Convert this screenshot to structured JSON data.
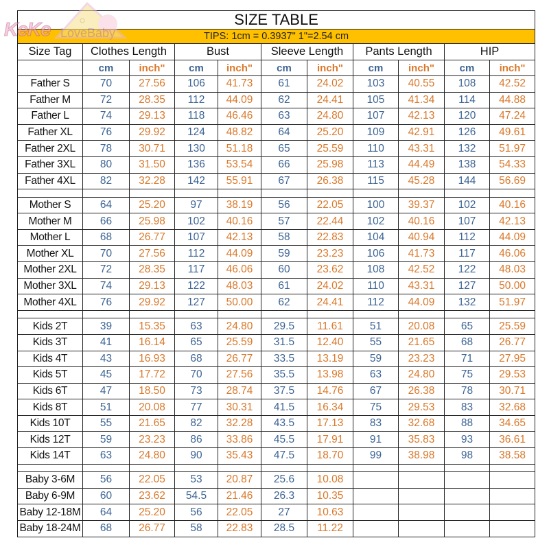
{
  "logo": {
    "part1": "KeKe",
    "part2": "LoveBaby"
  },
  "title": "SIZE TABLE",
  "tips": "TIPS: 1cm = 0.3937\"   1\"=2.54 cm",
  "colors": {
    "cm": "#3d6494",
    "inch": "#d9782a",
    "tips_bg": "#FFC000"
  },
  "headers": [
    "Size Tag",
    "Clothes Length",
    "Bust",
    "Sleeve Length",
    "Pants Length",
    "HIP"
  ],
  "units": {
    "cm": "cm",
    "inch": "inch\""
  },
  "sections": [
    {
      "rows": [
        [
          "Father S",
          "70",
          "27.56",
          "106",
          "41.73",
          "61",
          "24.02",
          "103",
          "40.55",
          "108",
          "42.52"
        ],
        [
          "Father M",
          "72",
          "28.35",
          "112",
          "44.09",
          "62",
          "24.41",
          "105",
          "41.34",
          "114",
          "44.88"
        ],
        [
          "Father L",
          "74",
          "29.13",
          "118",
          "46.46",
          "63",
          "24.80",
          "107",
          "42.13",
          "120",
          "47.24"
        ],
        [
          "Father XL",
          "76",
          "29.92",
          "124",
          "48.82",
          "64",
          "25.20",
          "109",
          "42.91",
          "126",
          "49.61"
        ],
        [
          "Father 2XL",
          "78",
          "30.71",
          "130",
          "51.18",
          "65",
          "25.59",
          "110",
          "43.31",
          "132",
          "51.97"
        ],
        [
          "Father 3XL",
          "80",
          "31.50",
          "136",
          "53.54",
          "66",
          "25.98",
          "113",
          "44.49",
          "138",
          "54.33"
        ],
        [
          "Father 4XL",
          "82",
          "32.28",
          "142",
          "55.91",
          "67",
          "26.38",
          "115",
          "45.28",
          "144",
          "56.69"
        ]
      ]
    },
    {
      "rows": [
        [
          "Mother S",
          "64",
          "25.20",
          "97",
          "38.19",
          "56",
          "22.05",
          "100",
          "39.37",
          "102",
          "40.16"
        ],
        [
          "Mother M",
          "66",
          "25.98",
          "102",
          "40.16",
          "57",
          "22.44",
          "102",
          "40.16",
          "107",
          "42.13"
        ],
        [
          "Mother L",
          "68",
          "26.77",
          "107",
          "42.13",
          "58",
          "22.83",
          "104",
          "40.94",
          "112",
          "44.09"
        ],
        [
          "Mother XL",
          "70",
          "27.56",
          "112",
          "44.09",
          "59",
          "23.23",
          "106",
          "41.73",
          "117",
          "46.06"
        ],
        [
          "Mother 2XL",
          "72",
          "28.35",
          "117",
          "46.06",
          "60",
          "23.62",
          "108",
          "42.52",
          "122",
          "48.03"
        ],
        [
          "Mother 3XL",
          "74",
          "29.13",
          "122",
          "48.03",
          "61",
          "24.02",
          "110",
          "43.31",
          "127",
          "50.00"
        ],
        [
          "Mother 4XL",
          "76",
          "29.92",
          "127",
          "50.00",
          "62",
          "24.41",
          "112",
          "44.09",
          "132",
          "51.97"
        ]
      ]
    },
    {
      "rows": [
        [
          "Kids 2T",
          "39",
          "15.35",
          "63",
          "24.80",
          "29.5",
          "11.61",
          "51",
          "20.08",
          "65",
          "25.59"
        ],
        [
          "Kids 3T",
          "41",
          "16.14",
          "65",
          "25.59",
          "31.5",
          "12.40",
          "55",
          "21.65",
          "68",
          "26.77"
        ],
        [
          "Kids 4T",
          "43",
          "16.93",
          "68",
          "26.77",
          "33.5",
          "13.19",
          "59",
          "23.23",
          "71",
          "27.95"
        ],
        [
          "Kids 5T",
          "45",
          "17.72",
          "70",
          "27.56",
          "35.5",
          "13.98",
          "63",
          "24.80",
          "75",
          "29.53"
        ],
        [
          "Kids 6T",
          "47",
          "18.50",
          "73",
          "28.74",
          "37.5",
          "14.76",
          "67",
          "26.38",
          "78",
          "30.71"
        ],
        [
          "Kids 8T",
          "51",
          "20.08",
          "77",
          "30.31",
          "41.5",
          "16.34",
          "75",
          "29.53",
          "83",
          "32.68"
        ],
        [
          "Kids 10T",
          "55",
          "21.65",
          "82",
          "32.28",
          "43.5",
          "17.13",
          "83",
          "32.68",
          "88",
          "34.65"
        ],
        [
          "Kids 12T",
          "59",
          "23.23",
          "86",
          "33.86",
          "45.5",
          "17.91",
          "91",
          "35.83",
          "93",
          "36.61"
        ],
        [
          "Kids 14T",
          "63",
          "24.80",
          "90",
          "35.43",
          "47.5",
          "18.70",
          "99",
          "38.98",
          "98",
          "38.58"
        ]
      ]
    },
    {
      "rows": [
        [
          "Baby 3-6M",
          "56",
          "22.05",
          "53",
          "20.87",
          "25.6",
          "10.08",
          "",
          "",
          "",
          ""
        ],
        [
          "Baby 6-9M",
          "60",
          "23.62",
          "54.5",
          "21.46",
          "26.3",
          "10.35",
          "",
          "",
          "",
          ""
        ],
        [
          "Baby 12-18M",
          "64",
          "25.20",
          "56",
          "22.05",
          "27",
          "10.63",
          "",
          "",
          "",
          ""
        ],
        [
          "Baby 18-24M",
          "68",
          "26.77",
          "58",
          "22.83",
          "28.5",
          "11.22",
          "",
          "",
          "",
          ""
        ]
      ]
    }
  ]
}
